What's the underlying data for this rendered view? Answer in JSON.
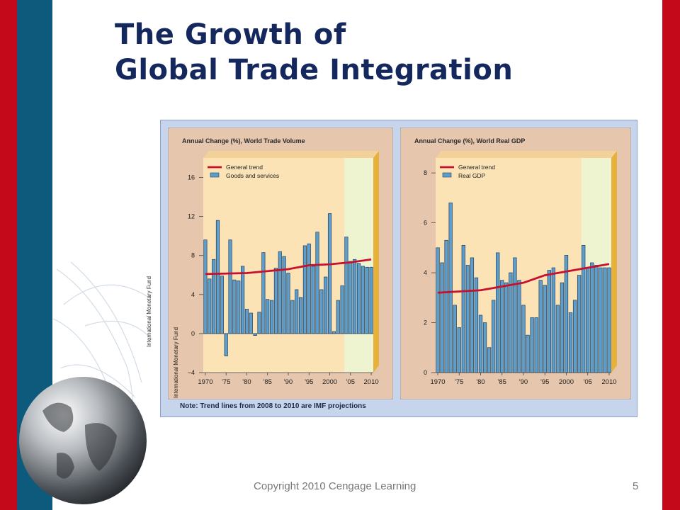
{
  "slide": {
    "title_line1": "The Growth of",
    "title_line2": "Global Trade Integration",
    "footer": "Copyright 2010 Cengage Learning",
    "page_number": "5"
  },
  "figure": {
    "side_source": "International Monetary Fund",
    "note": "Note: Trend lines from 2008 to 2010 are IMF projections"
  },
  "colors": {
    "accent_red": "#c40a1a",
    "accent_blue": "#0d5a7c",
    "title_navy": "#14285e",
    "bar_fill": "#5f9ec8",
    "trend_line": "#c8102e"
  },
  "chart_data": [
    {
      "type": "bar",
      "title": "Annual Change (%), World Trade Volume",
      "legend": [
        "General trend",
        "Goods and services"
      ],
      "xticklabels": [
        "1970",
        "'75",
        "'80",
        "'85",
        "'90",
        "'95",
        "2000",
        "'05",
        "2010"
      ],
      "ylim": [
        -4,
        18
      ],
      "yticks": [
        -4,
        0,
        4,
        8,
        12,
        16
      ],
      "x": [
        1970,
        1971,
        1972,
        1973,
        1974,
        1975,
        1976,
        1977,
        1978,
        1979,
        1980,
        1981,
        1982,
        1983,
        1984,
        1985,
        1986,
        1987,
        1988,
        1989,
        1990,
        1991,
        1992,
        1993,
        1994,
        1995,
        1996,
        1997,
        1998,
        1999,
        2000,
        2001,
        2002,
        2003,
        2004,
        2005,
        2006,
        2007,
        2008,
        2009,
        2010
      ],
      "series": [
        {
          "name": "Goods and services",
          "values": [
            9.6,
            5.6,
            7.6,
            11.6,
            5.9,
            -2.3,
            9.6,
            5.5,
            5.4,
            6.9,
            2.5,
            2.1,
            -0.2,
            2.2,
            8.3,
            3.5,
            3.4,
            6.7,
            8.4,
            7.9,
            6.2,
            3.4,
            4.5,
            3.7,
            9.0,
            9.2,
            6.9,
            10.4,
            4.5,
            5.8,
            12.3,
            0.2,
            3.4,
            4.9,
            9.9,
            7.4,
            7.6,
            7.2,
            6.9,
            6.8,
            6.8
          ]
        }
      ],
      "trend": {
        "name": "General trend",
        "x": [
          1970,
          1980,
          1990,
          1995,
          2000,
          2005,
          2010
        ],
        "values": [
          6.1,
          6.2,
          6.6,
          7.0,
          7.1,
          7.3,
          7.6
        ]
      }
    },
    {
      "type": "bar",
      "title": "Annual Change (%), World Real GDP",
      "legend": [
        "General trend",
        "Real GDP"
      ],
      "xticklabels": [
        "1970",
        "'75",
        "'80",
        "'85",
        "'90",
        "'95",
        "2000",
        "'05",
        "2010"
      ],
      "ylim": [
        0,
        8.6
      ],
      "yticks": [
        0,
        2,
        4,
        6,
        8
      ],
      "x": [
        1970,
        1971,
        1972,
        1973,
        1974,
        1975,
        1976,
        1977,
        1978,
        1979,
        1980,
        1981,
        1982,
        1983,
        1984,
        1985,
        1986,
        1987,
        1988,
        1989,
        1990,
        1991,
        1992,
        1993,
        1994,
        1995,
        1996,
        1997,
        1998,
        1999,
        2000,
        2001,
        2002,
        2003,
        2004,
        2005,
        2006,
        2007,
        2008,
        2009,
        2010
      ],
      "series": [
        {
          "name": "Real GDP",
          "values": [
            5.0,
            4.4,
            5.3,
            6.8,
            2.7,
            1.8,
            5.1,
            4.3,
            4.6,
            3.8,
            2.3,
            2.0,
            1.0,
            2.9,
            4.8,
            3.7,
            3.6,
            4.0,
            4.6,
            3.7,
            2.7,
            1.5,
            2.2,
            2.2,
            3.7,
            3.5,
            4.1,
            4.2,
            2.7,
            3.6,
            4.7,
            2.4,
            2.9,
            3.9,
            5.1,
            4.2,
            4.4,
            4.3,
            4.2,
            4.2,
            4.2
          ]
        }
      ],
      "trend": {
        "name": "General trend",
        "x": [
          1970,
          1975,
          1980,
          1990,
          1995,
          2000,
          2005,
          2010
        ],
        "values": [
          3.2,
          3.25,
          3.3,
          3.6,
          3.9,
          4.05,
          4.2,
          4.35
        ]
      }
    }
  ]
}
